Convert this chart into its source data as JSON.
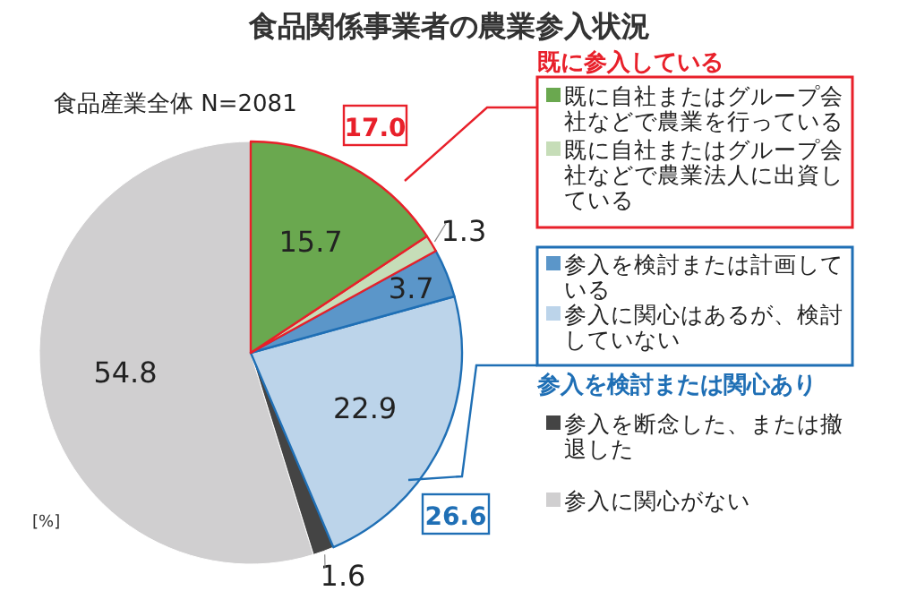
{
  "chart_data": {
    "type": "pie",
    "title": "食品関係事業者の農業参入状況",
    "categories": [
      "既に自社またはグループ会社などで農業を行っている",
      "既に自社またはグループ会社などで農業法人に出資している",
      "参入を検討または計画している",
      "参入に関心はあるが、検討していない",
      "参入を断念した、または撤退した",
      "参入に関心がない"
    ],
    "values": [
      15.7,
      1.3,
      3.7,
      22.9,
      1.6,
      54.8
    ],
    "colors": [
      "#6aa84f",
      "#c6ddb8",
      "#5b96c9",
      "#bcd4ea",
      "#444444",
      "#d0cfd0"
    ],
    "data_labels": true,
    "legend": "right",
    "annotations": [
      "食品産業全体 N=2081",
      "[%]",
      "既に参入している",
      "17.0",
      "参入を検討または関心あり",
      "26.6"
    ]
  }
}
